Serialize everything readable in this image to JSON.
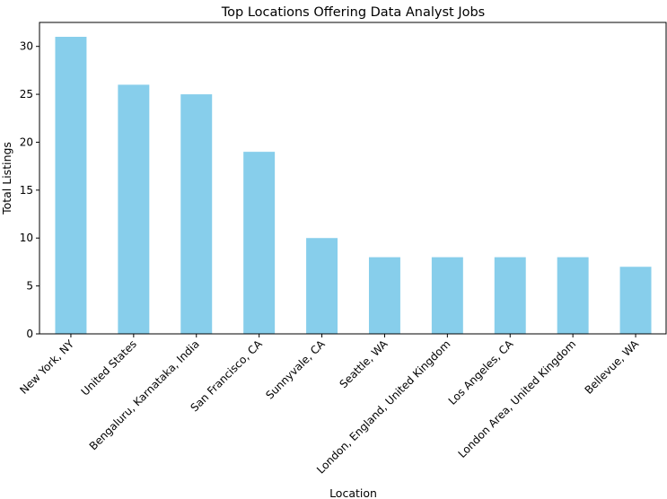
{
  "chart_data": {
    "type": "bar",
    "title": "Top Locations Offering Data Analyst Jobs",
    "xlabel": "Location",
    "ylabel": "Total Listings",
    "categories": [
      "New York, NY",
      "United States",
      "Bengaluru, Karnataka, India",
      "San Francisco, CA",
      "Sunnyvale, CA",
      "Seattle, WA",
      "London, England, United Kingdom",
      "Los Angeles, CA",
      "London Area, United Kingdom",
      "Bellevue, WA"
    ],
    "values": [
      31,
      26,
      25,
      19,
      10,
      8,
      8,
      8,
      8,
      7
    ],
    "ylim": [
      0,
      32.5
    ],
    "yticks": [
      0,
      5,
      10,
      15,
      20,
      25,
      30
    ],
    "bar_color": "#87ceeb",
    "grid": false,
    "legend": "none"
  }
}
